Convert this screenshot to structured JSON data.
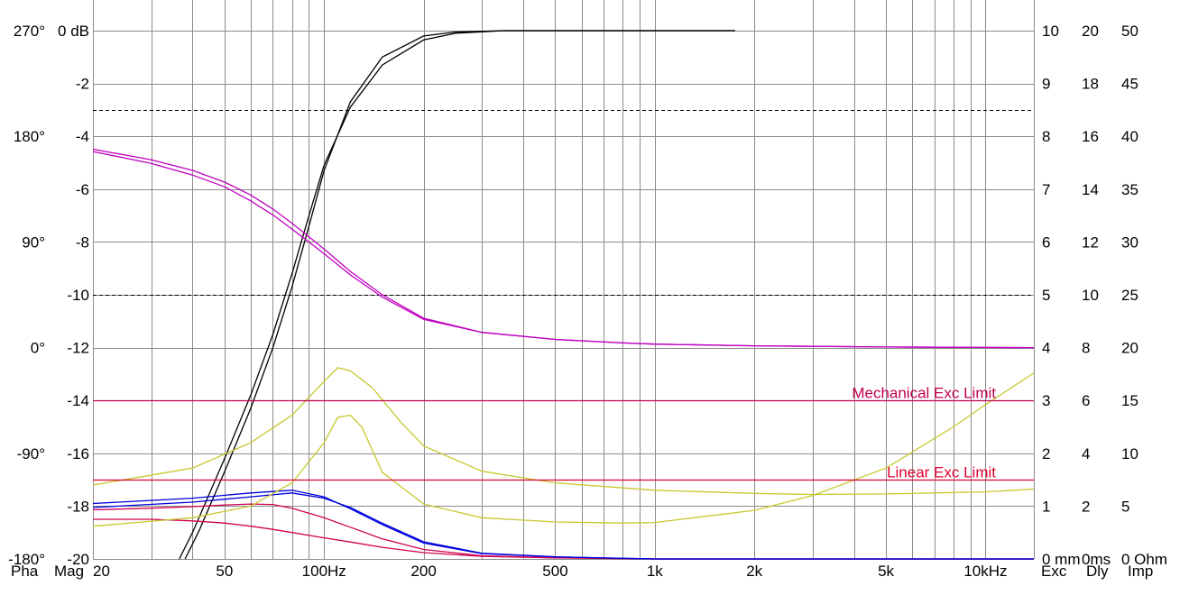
{
  "chart_data": {
    "type": "line",
    "x_scale": "log",
    "x_axis": {
      "range_hz": [
        20,
        14000
      ],
      "tick_values": [
        20,
        50,
        100,
        200,
        500,
        1000,
        2000,
        5000,
        10000
      ],
      "tick_labels": [
        "20",
        "50",
        "100Hz",
        "200",
        "500",
        "1k",
        "2k",
        "5k",
        "10kHz"
      ],
      "grid_values": [
        20,
        30,
        40,
        50,
        60,
        70,
        80,
        90,
        100,
        200,
        300,
        400,
        500,
        600,
        700,
        800,
        900,
        1000,
        2000,
        3000,
        4000,
        5000,
        6000,
        7000,
        8000,
        9000,
        10000
      ]
    },
    "y_axes": {
      "magnitude_db": {
        "range": [
          -20,
          0
        ],
        "tick_values": [
          0,
          -2,
          -4,
          -6,
          -8,
          -10,
          -12,
          -14,
          -16,
          -18,
          -20
        ],
        "tick_labels": [
          "0 dB",
          "-2",
          "-4",
          "-6",
          "-8",
          "-10",
          "-12",
          "-14",
          "-16",
          "-18",
          "-20"
        ],
        "dashed_grid_values": [
          -3,
          -10
        ]
      },
      "phase_deg": {
        "range": [
          -180,
          270
        ],
        "tick_values": [
          270,
          180,
          90,
          0,
          -90,
          -180
        ],
        "tick_labels": [
          "270°",
          "180°",
          "90°",
          "0°",
          "-90°",
          "-180°"
        ]
      },
      "excursion_mm": {
        "range": [
          0,
          10
        ],
        "tick_labels": [
          "10",
          "9",
          "8",
          "7",
          "6",
          "5",
          "4",
          "3",
          "2",
          "1",
          "0 mm"
        ]
      },
      "delay_ms": {
        "range": [
          0,
          20
        ],
        "tick_labels": [
          "20",
          "18",
          "16",
          "14",
          "12",
          "10",
          "8",
          "6",
          "4",
          "2",
          "0ms"
        ]
      },
      "impedance_ohm": {
        "range": [
          0,
          50
        ],
        "tick_labels": [
          "50",
          "45",
          "40",
          "35",
          "30",
          "25",
          "20",
          "15",
          "10",
          "5",
          "0 Ohm"
        ]
      }
    },
    "legend_left": [
      {
        "label": "Pha",
        "color": "#c000c0"
      },
      {
        "label": "Mag",
        "color": "#000000"
      }
    ],
    "legend_right": [
      {
        "label": "Exc",
        "color": "#d00050"
      },
      {
        "label": "Dly",
        "color": "#0000dd"
      },
      {
        "label": "Imp",
        "color": "#e8e800"
      }
    ],
    "limits": [
      {
        "label": "Mechanical Exc Limit",
        "excursion_mm": 3.0,
        "color": "#c00050"
      },
      {
        "label": "Linear Exc Limit",
        "excursion_mm": 1.5,
        "color": "#e00030"
      }
    ],
    "series": [
      {
        "axis": "magnitude_db",
        "color": "#000000",
        "points": [
          [
            36.5,
            -20
          ],
          [
            40,
            -19.0
          ],
          [
            50,
            -16.2
          ],
          [
            60,
            -13.8
          ],
          [
            70,
            -11.5
          ],
          [
            80,
            -9.2
          ],
          [
            90,
            -7.0
          ],
          [
            100,
            -5.1
          ],
          [
            120,
            -2.9
          ],
          [
            150,
            -1.3
          ],
          [
            200,
            -0.35
          ],
          [
            250,
            -0.1
          ],
          [
            350,
            0.0
          ],
          [
            1750,
            0.0
          ]
        ]
      },
      {
        "axis": "magnitude_db",
        "color": "#000000",
        "points": [
          [
            38,
            -20
          ],
          [
            42,
            -18.9
          ],
          [
            50,
            -16.7
          ],
          [
            60,
            -14.3
          ],
          [
            70,
            -12.0
          ],
          [
            80,
            -9.7
          ],
          [
            90,
            -7.4
          ],
          [
            100,
            -5.3
          ],
          [
            120,
            -2.7
          ],
          [
            150,
            -1.0
          ],
          [
            200,
            -0.2
          ],
          [
            250,
            -0.05
          ],
          [
            350,
            0.0
          ],
          [
            1750,
            0.0
          ]
        ]
      },
      {
        "axis": "phase_deg",
        "color": "#c000c0",
        "points": [
          [
            20,
            167
          ],
          [
            30,
            157
          ],
          [
            40,
            147
          ],
          [
            50,
            137
          ],
          [
            60,
            125
          ],
          [
            70,
            113
          ],
          [
            80,
            101
          ],
          [
            100,
            80
          ],
          [
            120,
            62
          ],
          [
            150,
            43
          ],
          [
            200,
            24
          ],
          [
            300,
            13
          ],
          [
            500,
            7
          ],
          [
            800,
            4
          ],
          [
            1000,
            3
          ],
          [
            2000,
            1.5
          ],
          [
            5000,
            0.5
          ],
          [
            14000,
            0
          ]
        ]
      },
      {
        "axis": "phase_deg",
        "color": "#c000c0",
        "points": [
          [
            20,
            169
          ],
          [
            30,
            160
          ],
          [
            40,
            151
          ],
          [
            50,
            141
          ],
          [
            60,
            130
          ],
          [
            70,
            118
          ],
          [
            80,
            106
          ],
          [
            100,
            84
          ],
          [
            120,
            65
          ],
          [
            150,
            45
          ],
          [
            200,
            25
          ],
          [
            300,
            13
          ],
          [
            500,
            7
          ],
          [
            800,
            4
          ],
          [
            1000,
            3
          ],
          [
            2000,
            1.5
          ],
          [
            5000,
            0.5
          ],
          [
            14000,
            0
          ]
        ]
      },
      {
        "axis": "excursion_mm",
        "color": "#d00050",
        "points": [
          [
            20,
            0.75
          ],
          [
            30,
            0.75
          ],
          [
            40,
            0.72
          ],
          [
            50,
            0.68
          ],
          [
            60,
            0.62
          ],
          [
            70,
            0.56
          ],
          [
            80,
            0.5
          ],
          [
            100,
            0.4
          ],
          [
            120,
            0.32
          ],
          [
            150,
            0.22
          ],
          [
            200,
            0.12
          ],
          [
            300,
            0.05
          ],
          [
            500,
            0.02
          ],
          [
            1000,
            0.0
          ],
          [
            14000,
            0.0
          ]
        ]
      },
      {
        "axis": "excursion_mm",
        "color": "#d00050",
        "points": [
          [
            20,
            0.93
          ],
          [
            30,
            0.96
          ],
          [
            40,
            0.99
          ],
          [
            50,
            1.02
          ],
          [
            60,
            1.04
          ],
          [
            70,
            1.03
          ],
          [
            80,
            0.96
          ],
          [
            100,
            0.78
          ],
          [
            120,
            0.6
          ],
          [
            150,
            0.38
          ],
          [
            200,
            0.18
          ],
          [
            300,
            0.06
          ],
          [
            500,
            0.02
          ],
          [
            1000,
            0.0
          ],
          [
            14000,
            0.0
          ]
        ]
      },
      {
        "axis": "delay_ms",
        "color": "#0000dd",
        "points": [
          [
            20,
            2.1
          ],
          [
            40,
            2.3
          ],
          [
            60,
            2.5
          ],
          [
            80,
            2.6
          ],
          [
            100,
            2.35
          ],
          [
            120,
            1.9
          ],
          [
            150,
            1.3
          ],
          [
            200,
            0.6
          ],
          [
            300,
            0.2
          ],
          [
            500,
            0.08
          ],
          [
            1000,
            0.0
          ],
          [
            14000,
            0.0
          ]
        ]
      },
      {
        "axis": "delay_ms",
        "color": "#0000dd",
        "points": [
          [
            20,
            1.95
          ],
          [
            40,
            2.15
          ],
          [
            60,
            2.35
          ],
          [
            80,
            2.5
          ],
          [
            100,
            2.3
          ],
          [
            120,
            1.95
          ],
          [
            150,
            1.35
          ],
          [
            200,
            0.65
          ],
          [
            300,
            0.22
          ],
          [
            500,
            0.08
          ],
          [
            1000,
            0.0
          ],
          [
            14000,
            0.0
          ]
        ]
      },
      {
        "axis": "impedance_ohm",
        "color": "#c8c830",
        "points": [
          [
            20,
            7.0
          ],
          [
            40,
            8.6
          ],
          [
            60,
            11.0
          ],
          [
            80,
            13.6
          ],
          [
            100,
            16.8
          ],
          [
            110,
            18.1
          ],
          [
            120,
            17.8
          ],
          [
            140,
            16.2
          ],
          [
            170,
            13.0
          ],
          [
            200,
            10.7
          ],
          [
            300,
            8.3
          ],
          [
            500,
            7.2
          ],
          [
            1000,
            6.5
          ],
          [
            2000,
            6.2
          ],
          [
            3000,
            6.1
          ],
          [
            5000,
            6.15
          ],
          [
            10000,
            6.35
          ],
          [
            14000,
            6.6
          ]
        ]
      },
      {
        "axis": "impedance_ohm",
        "color": "#c8c830",
        "points": [
          [
            20,
            3.1
          ],
          [
            40,
            3.9
          ],
          [
            60,
            5.0
          ],
          [
            80,
            7.2
          ],
          [
            100,
            11.0
          ],
          [
            110,
            13.4
          ],
          [
            120,
            13.6
          ],
          [
            130,
            12.5
          ],
          [
            150,
            8.2
          ],
          [
            200,
            5.2
          ],
          [
            300,
            3.9
          ],
          [
            500,
            3.5
          ],
          [
            800,
            3.4
          ],
          [
            1000,
            3.45
          ],
          [
            2000,
            4.6
          ],
          [
            3000,
            6.0
          ],
          [
            5000,
            8.6
          ],
          [
            8000,
            12.5
          ],
          [
            10000,
            14.6
          ],
          [
            14000,
            17.6
          ]
        ]
      }
    ]
  }
}
